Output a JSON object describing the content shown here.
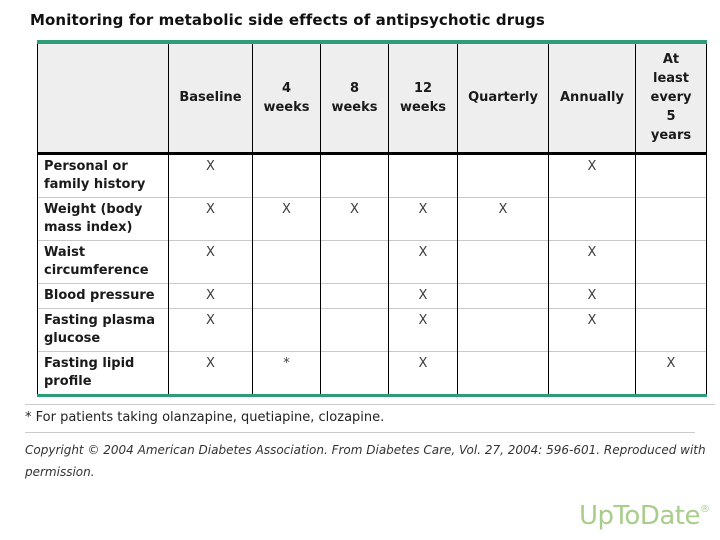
{
  "page": {
    "title": "Monitoring for metabolic side effects of antipsychotic drugs"
  },
  "table": {
    "columns": [
      "",
      "Baseline",
      "4\nweeks",
      "8\nweeks",
      "12\nweeks",
      "Quarterly",
      "Annually",
      "At\nleast\nevery\n5\nyears"
    ],
    "rows": [
      {
        "label": "Personal or family history",
        "cells": [
          "X",
          "",
          "",
          "",
          "",
          "X",
          ""
        ]
      },
      {
        "label": "Weight (body mass index)",
        "cells": [
          "X",
          "X",
          "X",
          "X",
          "X",
          "",
          ""
        ]
      },
      {
        "label": "Waist circumference",
        "cells": [
          "X",
          "",
          "",
          "X",
          "",
          "X",
          ""
        ]
      },
      {
        "label": "Blood pressure",
        "cells": [
          "X",
          "",
          "",
          "X",
          "",
          "X",
          ""
        ]
      },
      {
        "label": "Fasting plasma glucose",
        "cells": [
          "X",
          "",
          "",
          "X",
          "",
          "X",
          ""
        ]
      },
      {
        "label": "Fasting lipid profile",
        "cells": [
          "X",
          "*",
          "",
          "X",
          "",
          "",
          "X"
        ]
      }
    ]
  },
  "footnotes": {
    "asterisk": "* For patients taking olanzapine, quetiapine, clozapine.",
    "copyright": "Copyright © 2004 American Diabetes Association. From Diabetes Care, Vol. 27, 2004: 596-601. Reproduced with permission."
  },
  "branding": {
    "logo_text": "UpToDate",
    "registered_mark": "®"
  },
  "colors": {
    "accent_green": "#2e9c78",
    "header_bg": "#eeeeee",
    "row_divider": "#c9c9c9",
    "table_border": "#000000",
    "logo_green": "#a9cd8b"
  }
}
